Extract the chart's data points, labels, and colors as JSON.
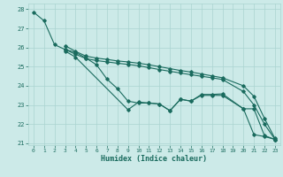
{
  "xlabel": "Humidex (Indice chaleur)",
  "ylabel": "",
  "xlim": [
    -0.5,
    23.5
  ],
  "ylim": [
    20.9,
    28.3
  ],
  "yticks": [
    21,
    22,
    23,
    24,
    25,
    26,
    27,
    28
  ],
  "xticks": [
    0,
    1,
    2,
    3,
    4,
    5,
    6,
    7,
    8,
    9,
    10,
    11,
    12,
    13,
    14,
    15,
    16,
    17,
    18,
    19,
    20,
    21,
    22,
    23
  ],
  "bg_color": "#cceae8",
  "grid_color": "#aad4d0",
  "line_color": "#1a6b5e",
  "lines": [
    {
      "x": [
        0,
        1,
        2,
        3,
        4,
        5,
        6,
        7,
        8,
        9,
        10,
        11,
        12,
        13,
        14,
        15,
        16,
        17,
        18,
        20,
        21,
        22,
        23
      ],
      "y": [
        27.85,
        27.4,
        26.15,
        25.9,
        25.75,
        25.45,
        25.1,
        24.35,
        23.85,
        23.2,
        23.1,
        23.1,
        23.05,
        22.7,
        23.3,
        23.2,
        23.5,
        23.5,
        23.5,
        22.8,
        21.45,
        21.35,
        21.2
      ]
    },
    {
      "x": [
        3,
        4,
        5,
        6,
        7,
        8,
        9,
        10,
        11,
        12,
        13,
        14,
        15,
        16,
        17,
        18,
        20,
        21,
        22,
        23
      ],
      "y": [
        26.1,
        25.8,
        25.55,
        25.45,
        25.38,
        25.3,
        25.25,
        25.18,
        25.1,
        25.0,
        24.9,
        24.8,
        24.72,
        24.62,
        24.52,
        24.42,
        24.0,
        23.45,
        22.3,
        21.25
      ]
    },
    {
      "x": [
        3,
        4,
        5,
        6,
        7,
        8,
        9,
        10,
        11,
        12,
        13,
        14,
        15,
        16,
        17,
        18,
        20,
        21,
        22,
        23
      ],
      "y": [
        25.9,
        25.65,
        25.42,
        25.32,
        25.25,
        25.18,
        25.12,
        25.05,
        24.95,
        24.85,
        24.76,
        24.67,
        24.58,
        24.5,
        24.42,
        24.33,
        23.7,
        23.0,
        22.0,
        21.2
      ]
    },
    {
      "x": [
        3,
        4,
        9,
        10,
        11,
        12,
        13,
        14,
        15,
        16,
        17,
        18,
        20,
        21,
        22,
        23
      ],
      "y": [
        25.82,
        25.5,
        22.75,
        23.15,
        23.1,
        23.05,
        22.7,
        23.3,
        23.2,
        23.55,
        23.55,
        23.58,
        22.8,
        22.8,
        21.4,
        21.2
      ]
    }
  ]
}
